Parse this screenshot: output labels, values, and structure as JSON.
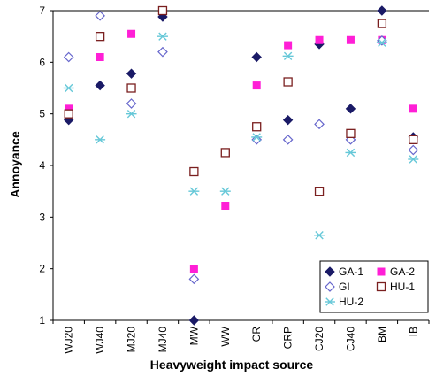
{
  "chart_data": {
    "type": "scatter",
    "title": "",
    "xlabel": "Heavyweight impact source",
    "ylabel": "Annoyance",
    "categories": [
      "WJ20",
      "WJ40",
      "MJ20",
      "MJ40",
      "MW",
      "WW",
      "CR",
      "CRP",
      "CJ20",
      "CJ40",
      "BM",
      "IB"
    ],
    "ylim": [
      1,
      7
    ],
    "yticks": [
      "1",
      "2",
      "3",
      "4",
      "5",
      "6",
      "7"
    ],
    "grid": false,
    "legend_position": "bottom-right",
    "series": [
      {
        "name": "GA-1",
        "marker": "filled-diamond",
        "color": "#1a1a66",
        "values": [
          4.88,
          5.55,
          5.78,
          6.88,
          1.0,
          null,
          6.1,
          4.88,
          6.35,
          5.1,
          7.0,
          4.55
        ]
      },
      {
        "name": "GA-2",
        "marker": "filled-square",
        "color": "#ff1fd6",
        "values": [
          5.1,
          6.1,
          6.55,
          null,
          2.0,
          3.22,
          5.55,
          6.33,
          6.43,
          6.43,
          6.43,
          5.1
        ]
      },
      {
        "name": "GI",
        "marker": "open-diamond",
        "color": "#6666cc",
        "values": [
          6.1,
          6.9,
          5.2,
          6.2,
          1.8,
          null,
          4.5,
          4.5,
          4.8,
          4.5,
          6.42,
          4.3
        ]
      },
      {
        "name": "HU-1",
        "marker": "open-square",
        "color": "#7a1f1f",
        "values": [
          5.0,
          6.5,
          5.5,
          7.0,
          3.88,
          4.25,
          4.75,
          5.62,
          3.5,
          4.62,
          6.75,
          4.5
        ]
      },
      {
        "name": "HU-2",
        "marker": "asterisk",
        "color": "#66c8d8",
        "values": [
          5.5,
          4.5,
          5.0,
          6.5,
          3.5,
          3.5,
          4.55,
          6.12,
          2.65,
          4.25,
          6.38,
          4.12
        ]
      }
    ]
  }
}
